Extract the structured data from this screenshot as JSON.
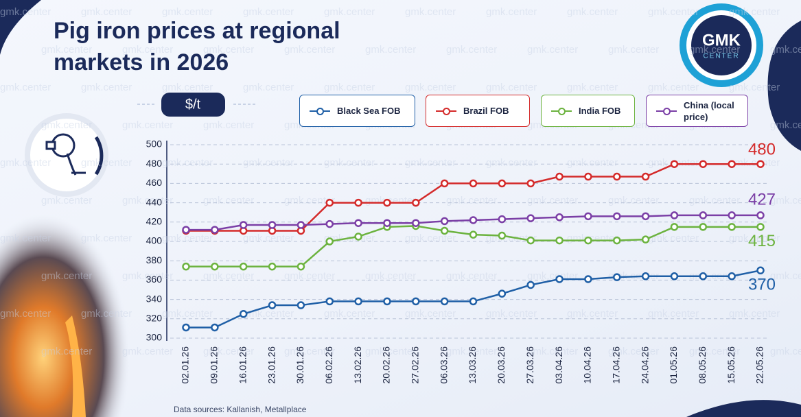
{
  "watermark": "gmk.center",
  "logo": {
    "top": "GMK",
    "bottom": "CENTER"
  },
  "chart_data": {
    "type": "line",
    "title": "Pig iron prices at regional markets in 2026",
    "unit": "$/t",
    "source": "Data sources: Kallanish, Metallplace",
    "categories": [
      "02.01.26",
      "09.01.26",
      "16.01.26",
      "23.01.26",
      "30.01.26",
      "06.02.26",
      "13.02.26",
      "20.02.26",
      "27.02.26",
      "06.03.26",
      "13.03.26",
      "20.03.26",
      "27.03.26",
      "03.04.26",
      "10.04.26",
      "17.04.26",
      "24.04.26",
      "01.05.26",
      "08.05.26",
      "15.05.26",
      "22.05.26"
    ],
    "series": [
      {
        "name": "Black Sea FOB",
        "color": "#1f5fa6",
        "values": [
          311,
          311,
          325,
          334,
          334,
          338,
          338,
          338,
          338,
          338,
          338,
          346,
          355,
          361,
          361,
          363,
          364,
          364,
          364,
          364,
          370
        ]
      },
      {
        "name": "Brazil FOB",
        "color": "#d42a2a",
        "values": [
          411,
          411,
          411,
          411,
          411,
          440,
          440,
          440,
          440,
          460,
          460,
          460,
          460,
          467,
          467,
          467,
          467,
          480,
          480,
          480,
          480
        ]
      },
      {
        "name": "India FOB",
        "color": "#6cb33f",
        "values": [
          374,
          374,
          374,
          374,
          374,
          400,
          405,
          415,
          416,
          411,
          407,
          406,
          401,
          401,
          401,
          401,
          402,
          415,
          415,
          415,
          415
        ]
      },
      {
        "name": "China (local price)",
        "color": "#7b3fa6",
        "values": [
          412,
          412,
          417,
          417,
          417,
          418,
          419,
          419,
          419,
          421,
          422,
          423,
          424,
          425,
          426,
          426,
          426,
          427,
          427,
          427,
          427
        ]
      }
    ],
    "ylim": [
      300,
      500
    ],
    "yticks": [
      300,
      320,
      340,
      360,
      380,
      400,
      420,
      440,
      460,
      480,
      500
    ],
    "grid": true
  }
}
